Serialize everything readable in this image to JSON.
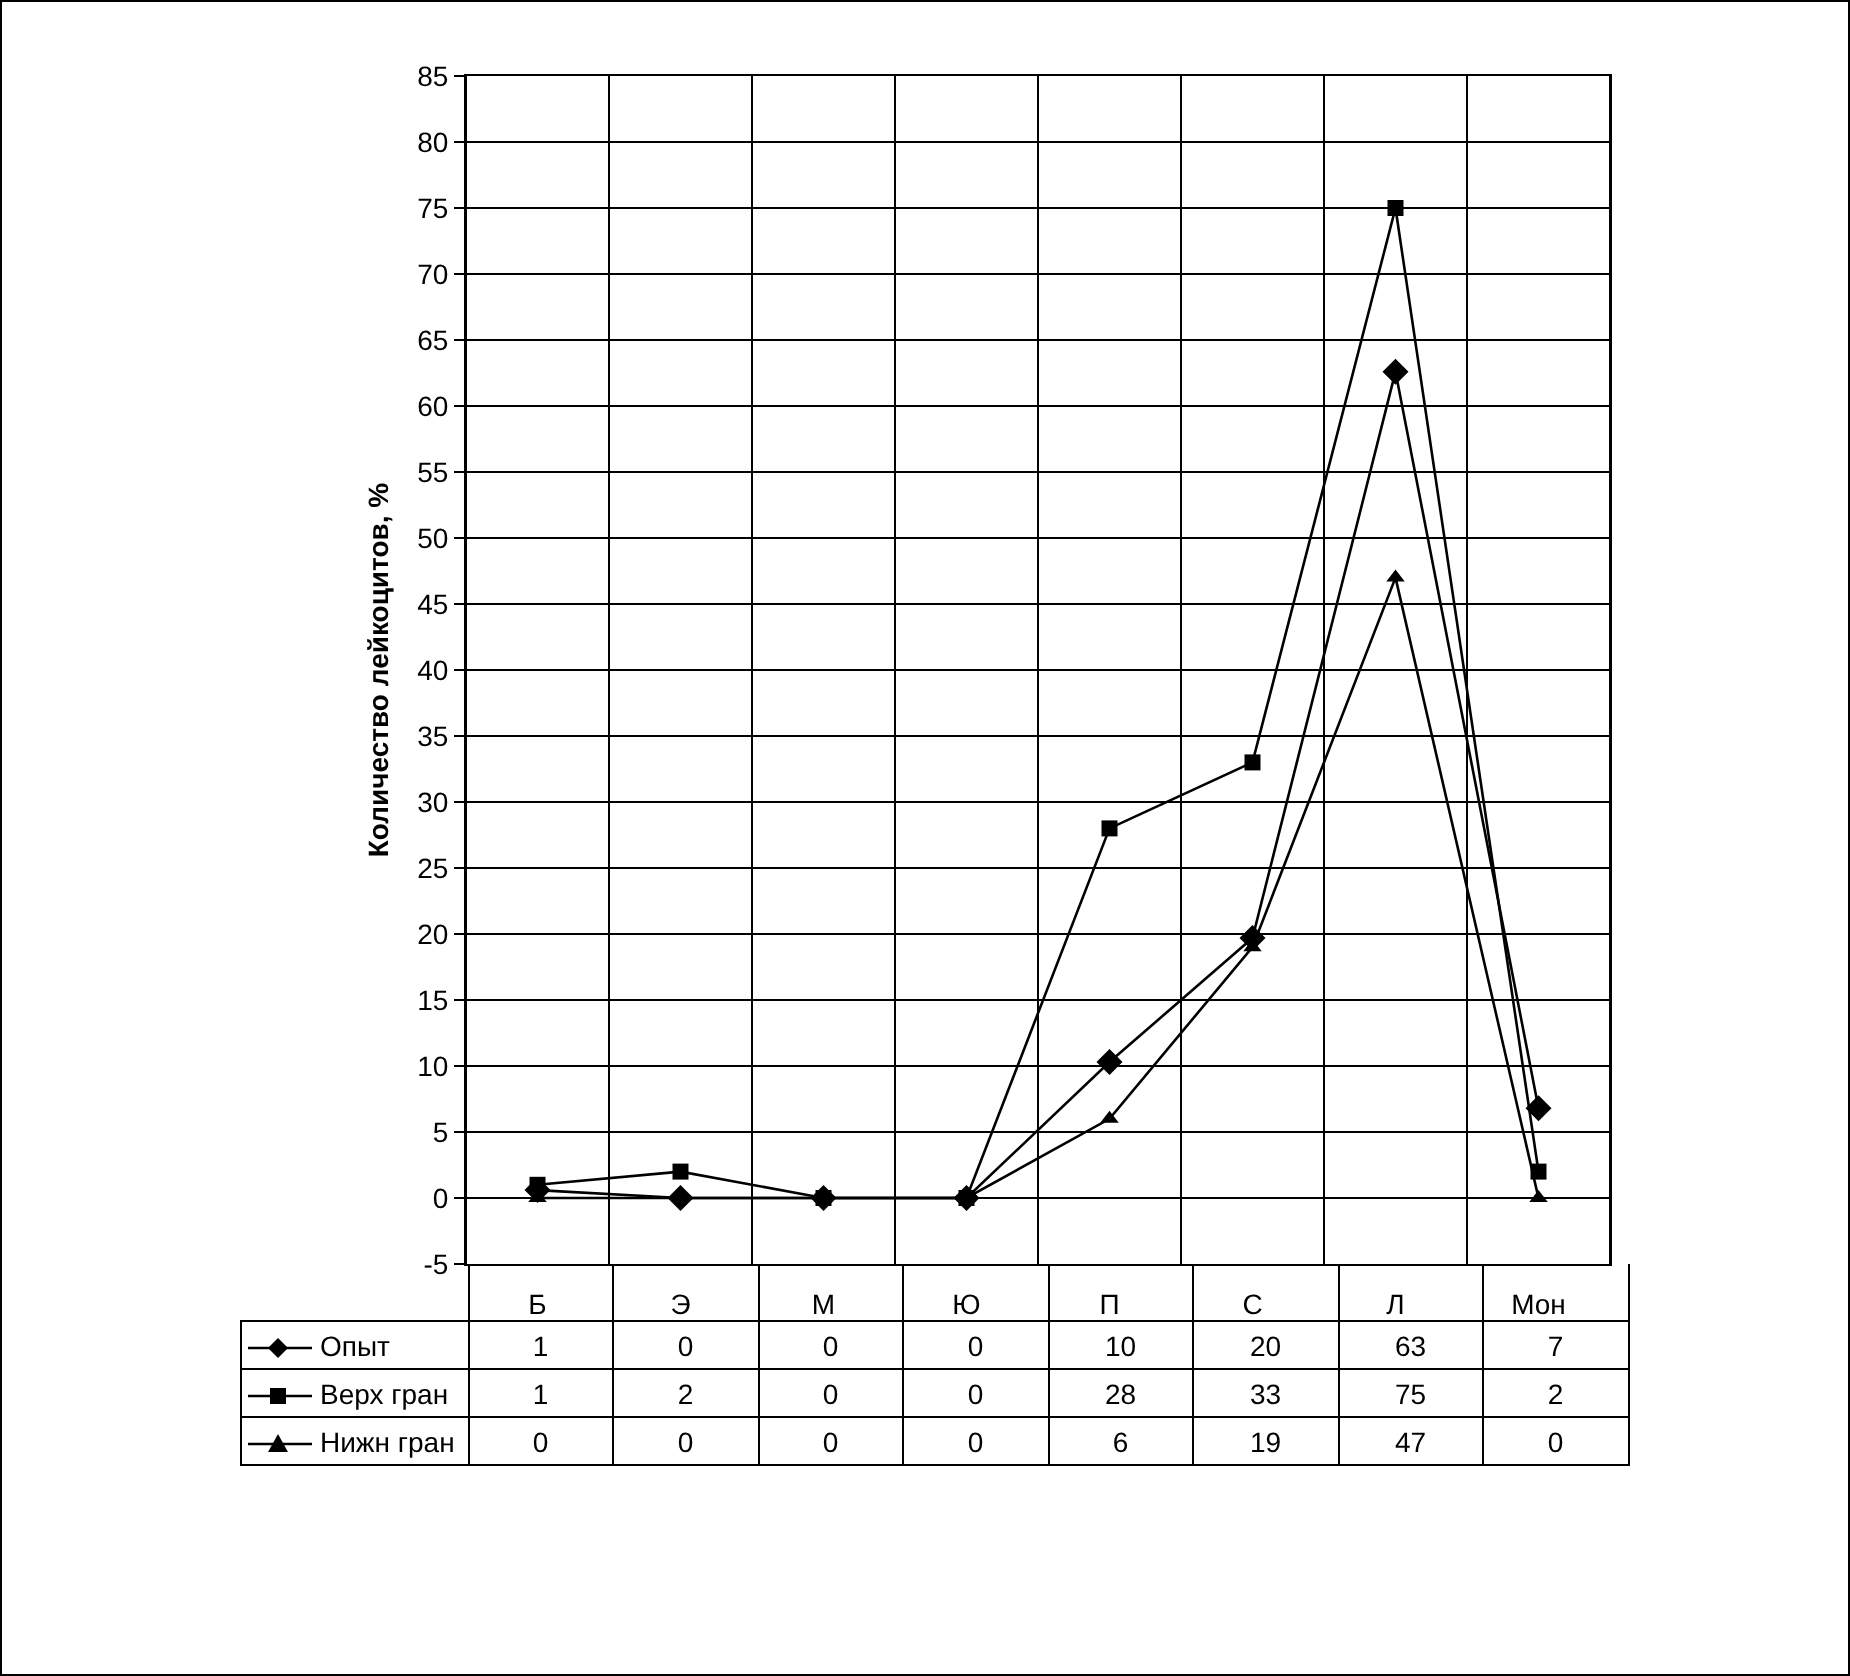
{
  "chart_data": {
    "type": "line",
    "ylabel": "Количество лейкоцитов, %",
    "categories": [
      "Б",
      "Э",
      "М",
      "Ю",
      "П",
      "С",
      "Л",
      "Мон"
    ],
    "series": [
      {
        "name": "Опыт",
        "color": "#000000",
        "marker": "diamond",
        "values": [
          0.6,
          0,
          0,
          0,
          10.3,
          19.7,
          62.6,
          6.8
        ],
        "value_labels": [
          "1",
          "0",
          "0",
          "0",
          "10",
          "20",
          "63",
          "7"
        ]
      },
      {
        "name": "Верх гран",
        "color": "#000000",
        "marker": "square",
        "values": [
          1,
          2,
          0,
          0,
          28,
          33,
          75,
          2
        ],
        "value_labels": [
          "1",
          "2",
          "0",
          "0",
          "28",
          "33",
          "75",
          "2"
        ]
      },
      {
        "name": "Нижн гран",
        "color": "#000000",
        "marker": "triangle",
        "values": [
          0,
          0,
          0,
          0,
          6,
          19,
          47,
          0
        ],
        "value_labels": [
          "0",
          "0",
          "0",
          "0",
          "6",
          "19",
          "47",
          "0"
        ]
      }
    ],
    "ylim": [
      -5,
      85
    ],
    "yticks": [
      -5,
      0,
      5,
      10,
      15,
      20,
      25,
      30,
      35,
      40,
      45,
      50,
      55,
      60,
      65,
      70,
      75,
      80,
      85
    ],
    "grid": true,
    "legend": "bottom left",
    "line_style": "solid"
  }
}
